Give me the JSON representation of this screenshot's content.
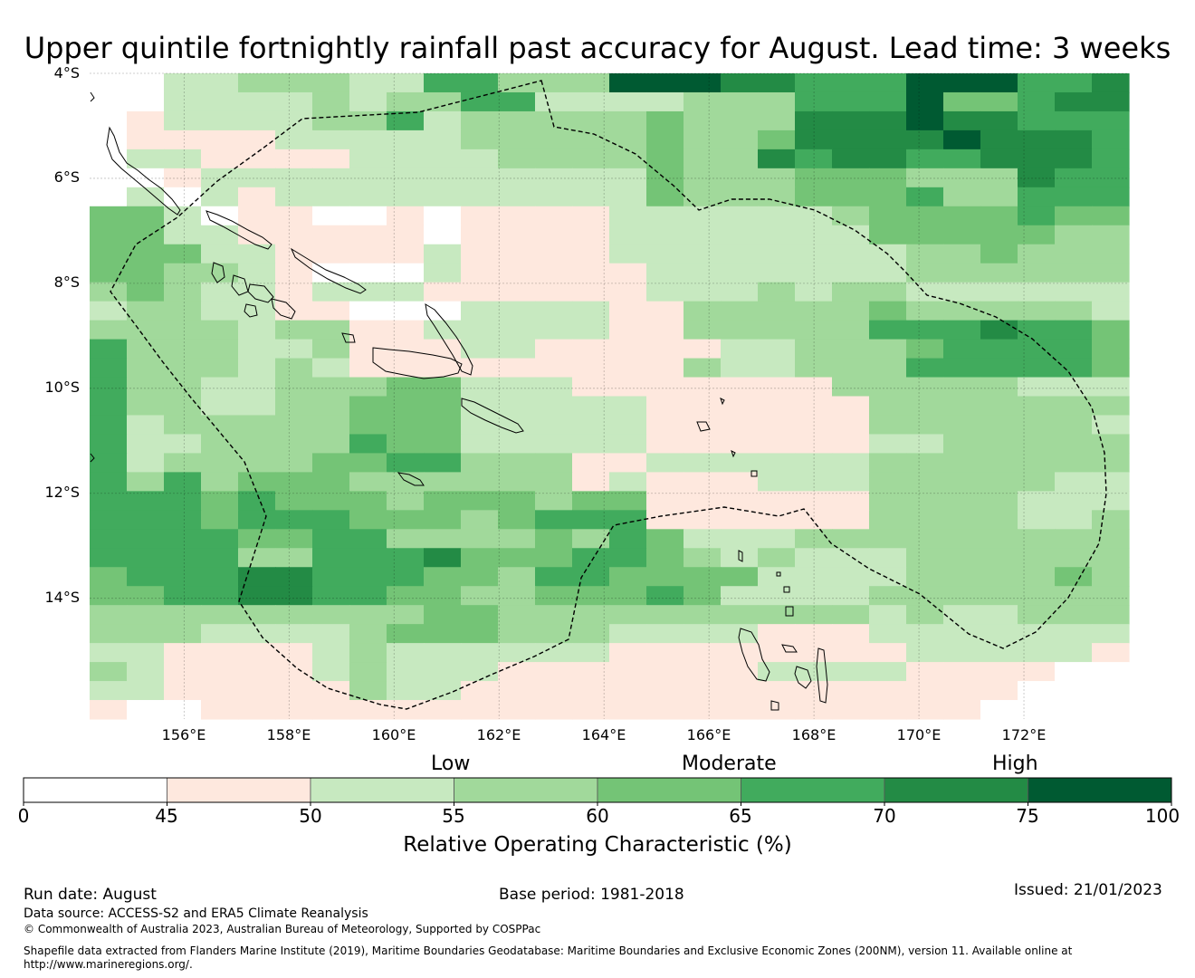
{
  "title": "Upper quintile fortnightly rainfall past accuracy for August. Lead time: 3 weeks",
  "map": {
    "lat_labels": [
      "4°S",
      "6°S",
      "8°S",
      "10°S",
      "12°S",
      "14°S"
    ],
    "lon_labels": [
      "156°E",
      "158°E",
      "160°E",
      "162°E",
      "164°E",
      "166°E",
      "168°E",
      "170°E",
      "172°E"
    ],
    "lat_range": [
      -16.3,
      -4.0
    ],
    "lon_range": [
      154.2,
      174.0
    ],
    "grid_lats": [
      -4,
      -6,
      -8,
      -10,
      -12,
      -14
    ],
    "grid_lons": [
      156,
      158,
      160,
      162,
      164,
      166,
      168,
      170,
      172
    ],
    "cells_description_key": "digits 0-7 index the colorbar classes; rows go north to south, columns west to east",
    "grid_rows": [
      "0022333225533377766555777556",
      "0022223233552222333555744566",
      "0122223352333334333666766555",
      "0111122222333334334666676665",
      "0221111222233334336566556665",
      "0012222222222224333444333655",
      "0202122222222224333444533555",
      "4420110010111122222234444544",
      "4422111110111122222224444433",
      "4442211112111122222222334333",
      "4433210002111112222222333333",
      "3432212221111112223233222222",
      "2332211000222211333334333332",
      "3333233112222211333335556554",
      "5333223111221111122333455554",
      "5333232111111111322333555554",
      "5332233344222111111133333222",
      "5332233444222221111113333333",
      "5233333444222221111113333332",
      "5223333544222221111112233333",
      "5233334455333112222223333333",
      "5353444333333121112223333322",
      "5554544434443441111113333222",
      "5554555444345551111113333223",
      "5555445533334354222333333333",
      "5555335556444554323222333333",
      "4555665554435544442222333343",
      "4455665544334445422223333333",
      "3333333334433333333332322333",
      "3332222344433322221112222222",
      "2211112322222211111111222221",
      "3211112322211111112222111100",
      "2211111322111111111111111000",
      "1001111111111111111111110000"
    ]
  },
  "colorbar": {
    "boundaries": [
      0,
      45,
      50,
      55,
      60,
      65,
      70,
      75,
      100
    ],
    "colors": [
      "#ffffff",
      "#fee8de",
      "#c7e9c0",
      "#a1d99b",
      "#74c476",
      "#41ab5d",
      "#238b45",
      "#005a32"
    ],
    "tick_labels": [
      "0",
      "45",
      "50",
      "55",
      "60",
      "65",
      "70",
      "75",
      "100"
    ],
    "category_labels": [
      "Low",
      "Moderate",
      "High"
    ],
    "title": "Relative Operating Characteristic (%)"
  },
  "footer": {
    "run_date": "Run date: August",
    "base_period": "Base period: 1981-2018",
    "issued": "Issued: 21/01/2023",
    "data_source": "Data source: ACCESS-S2 and ERA5 Climate Reanalysis",
    "copyright": "© Commonwealth of Australia 2023, Australian Bureau of Meteorology, Supported by COSPPac",
    "shapefile_line1": "Shapefile data extracted from Flanders Marine Institute (2019), Maritime Boundaries Geodatabase: Maritime Boundaries and Exclusive Economic Zones (200NM), version 11. Available online at",
    "shapefile_line2": "http://www.marineregions.org/."
  }
}
